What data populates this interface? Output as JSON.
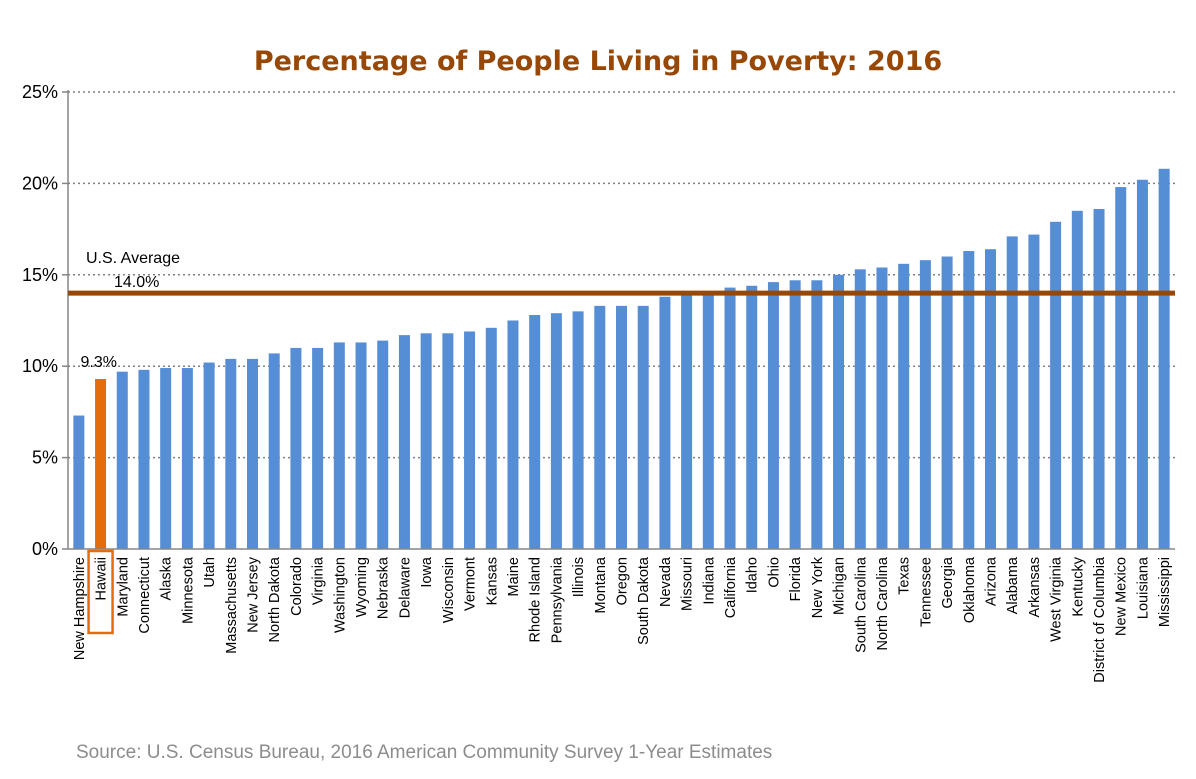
{
  "chart_data": {
    "type": "bar",
    "title": "Percentage of People Living in Poverty: 2016",
    "xlabel": "",
    "ylabel": "",
    "ylim": [
      0,
      25
    ],
    "yticks": [
      0,
      5,
      10,
      15,
      20,
      25
    ],
    "ytick_labels": [
      "0%",
      "5%",
      "10%",
      "15%",
      "20%",
      "25%"
    ],
    "grid": true,
    "categories": [
      "New Hampshire",
      "Hawaii",
      "Maryland",
      "Connecticut",
      "Alaska",
      "Minnesota",
      "Utah",
      "Massachusetts",
      "New Jersey",
      "North Dakota",
      "Colorado",
      "Virginia",
      "Washington",
      "Wyoming",
      "Nebraska",
      "Delaware",
      "Iowa",
      "Wisconsin",
      "Vermont",
      "Kansas",
      "Maine",
      "Rhode Island",
      "Pennsylvania",
      "Illinois",
      "Montana",
      "Oregon",
      "South Dakota",
      "Nevada",
      "Missouri",
      "Indiana",
      "California",
      "Idaho",
      "Ohio",
      "Florida",
      "New York",
      "Michigan",
      "South Carolina",
      "North Carolina",
      "Texas",
      "Tennessee",
      "Georgia",
      "Oklahoma",
      "Arizona",
      "Alabama",
      "Arkansas",
      "West Virginia",
      "Kentucky",
      "District of Columbia",
      "New Mexico",
      "Louisiana",
      "Mississippi"
    ],
    "values": [
      7.3,
      9.3,
      9.7,
      9.8,
      9.9,
      9.9,
      10.2,
      10.4,
      10.4,
      10.7,
      11.0,
      11.0,
      11.3,
      11.3,
      11.4,
      11.7,
      11.8,
      11.8,
      11.9,
      12.1,
      12.5,
      12.8,
      12.9,
      13.0,
      13.3,
      13.3,
      13.3,
      13.8,
      14.0,
      14.1,
      14.3,
      14.4,
      14.6,
      14.7,
      14.7,
      15.0,
      15.3,
      15.4,
      15.6,
      15.8,
      16.0,
      16.3,
      16.4,
      17.1,
      17.2,
      17.9,
      18.5,
      18.6,
      19.8,
      20.2,
      20.8
    ],
    "highlight": {
      "category": "Hawaii",
      "label": "9.3%"
    },
    "reference_line": {
      "value": 14.0,
      "label": "U.S. Average",
      "value_label": "14.0%"
    },
    "source": "Source: U.S. Census Bureau, 2016 American Community Survey 1-Year Estimates",
    "colors": {
      "bar": "#558ED5",
      "highlight": "#E46C0A",
      "reference": "#974706",
      "title": "#974706",
      "grid": "#808080"
    }
  }
}
